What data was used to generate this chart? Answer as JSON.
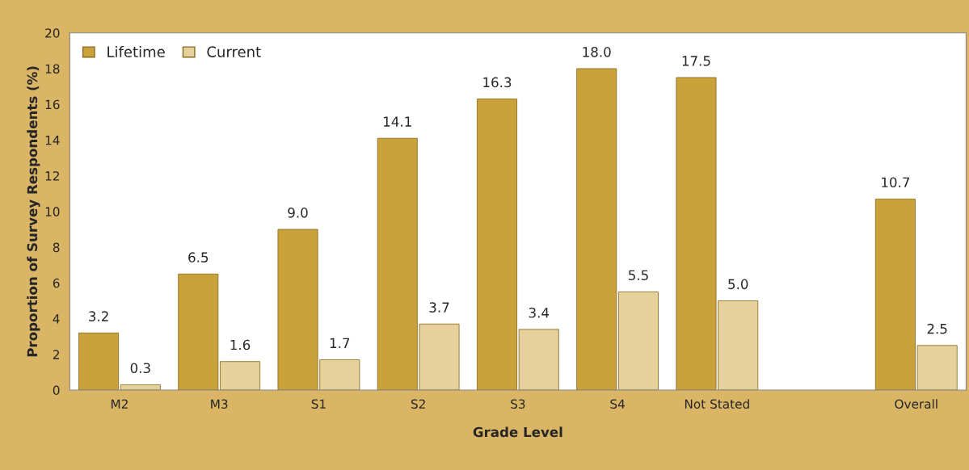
{
  "chart_data": {
    "type": "bar",
    "xlabel": "Grade Level",
    "ylabel": "Proportion of Survey Respondents (%)",
    "categories": [
      "M2",
      "M3",
      "S1",
      "S2",
      "S3",
      "S4",
      "Not Stated",
      null,
      "Overall"
    ],
    "series": [
      {
        "name": "Lifetime",
        "color": "#c9a23c",
        "values": [
          3.2,
          6.5,
          9.0,
          14.1,
          16.3,
          18.0,
          17.5,
          null,
          10.7
        ],
        "value_labels": [
          "3.2",
          "6.5",
          "9.0",
          "14.1",
          "16.3",
          "18.0",
          "17.5",
          null,
          "10.7"
        ]
      },
      {
        "name": "Current",
        "color": "#e6d09c",
        "values": [
          0.3,
          1.6,
          1.7,
          3.7,
          3.4,
          5.5,
          5.0,
          null,
          2.5
        ],
        "value_labels": [
          "0.3",
          "1.6",
          "1.7",
          "3.7",
          "3.4",
          "5.5",
          "5.0",
          null,
          "2.5"
        ]
      }
    ],
    "ylim": [
      0,
      20
    ],
    "yticks": [
      0,
      2,
      4,
      6,
      8,
      10,
      12,
      14,
      16,
      18,
      20
    ],
    "legend": "top left",
    "grid": false
  }
}
